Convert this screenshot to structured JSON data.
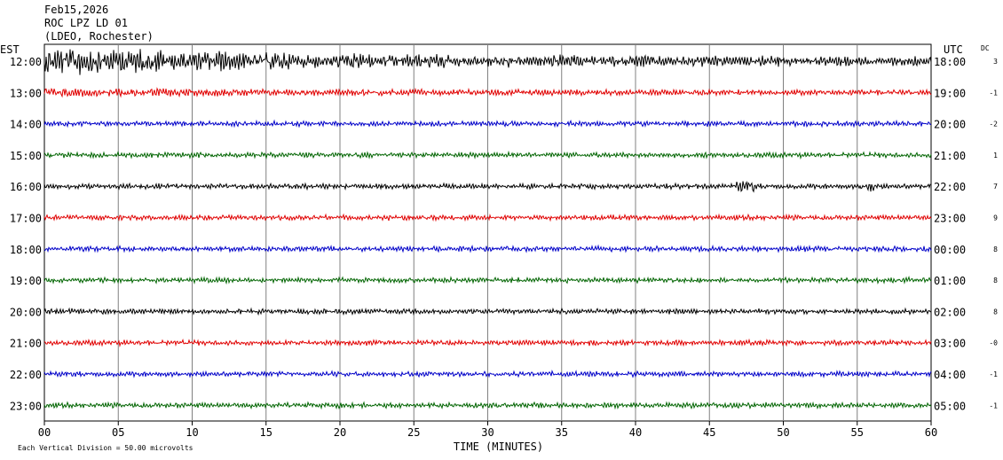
{
  "header": {
    "date": "Feb15,2026",
    "station": "ROC LPZ LD 01",
    "network": "(LDEO, Rochester)"
  },
  "labels": {
    "left_zone": "EST",
    "right_zone": "UTC",
    "dc_header": "DC",
    "footer_scale": "Each Vertical Division =   50.00 microvolts"
  },
  "colors": {
    "trace_cycle": [
      "#000000",
      "#e00000",
      "#0000c8",
      "#006400"
    ],
    "grid": "#808080",
    "axis": "#000000"
  },
  "chart_data": {
    "type": "line",
    "title": "",
    "xlabel": "TIME (MINUTES)",
    "ylabel": "",
    "xlim": [
      0,
      60
    ],
    "x_ticks": [
      "00",
      "05",
      "10",
      "15",
      "20",
      "25",
      "30",
      "35",
      "40",
      "45",
      "50",
      "55",
      "60"
    ],
    "grid": true,
    "rows": [
      {
        "est": "12:00",
        "utc": "18:00",
        "dc": "3"
      },
      {
        "est": "13:00",
        "utc": "19:00",
        "dc": "-1"
      },
      {
        "est": "14:00",
        "utc": "20:00",
        "dc": "-2"
      },
      {
        "est": "15:00",
        "utc": "21:00",
        "dc": "1"
      },
      {
        "est": "16:00",
        "utc": "22:00",
        "dc": "7"
      },
      {
        "est": "17:00",
        "utc": "23:00",
        "dc": "9"
      },
      {
        "est": "18:00",
        "utc": "00:00",
        "dc": "8"
      },
      {
        "est": "19:00",
        "utc": "01:00",
        "dc": "8"
      },
      {
        "est": "20:00",
        "utc": "02:00",
        "dc": "8"
      },
      {
        "est": "21:00",
        "utc": "03:00",
        "dc": "-0"
      },
      {
        "est": "22:00",
        "utc": "04:00",
        "dc": "-1"
      },
      {
        "est": "23:00",
        "utc": "05:00",
        "dc": "-1"
      }
    ]
  }
}
